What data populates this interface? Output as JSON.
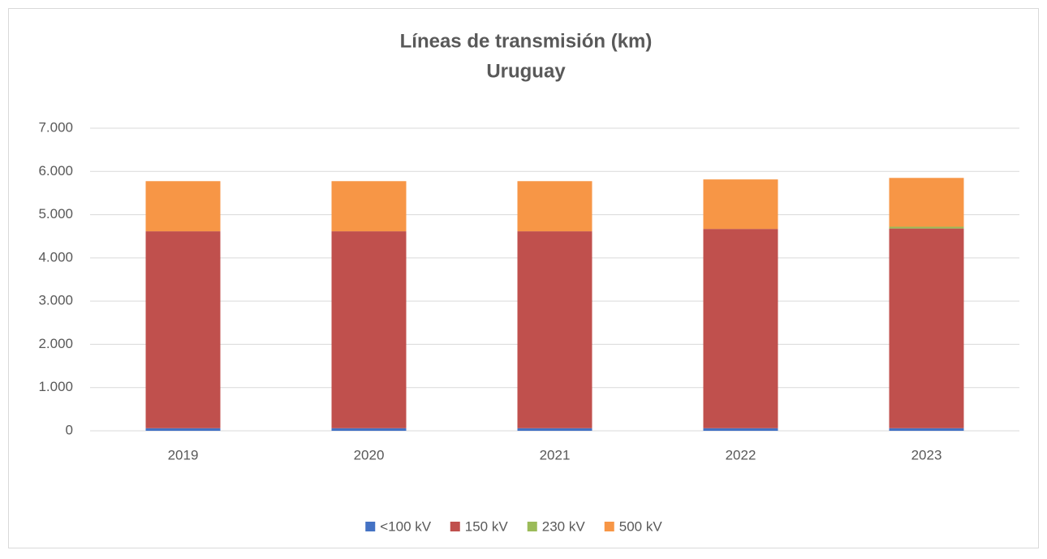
{
  "chart_data": {
    "type": "stacked_bar",
    "title": "Líneas de transmisión (km)",
    "subtitle": "Uruguay",
    "categories": [
      "2019",
      "2020",
      "2021",
      "2022",
      "2023"
    ],
    "series": [
      {
        "name": "<100 kV",
        "color": "#4472c4",
        "values": [
          60,
          60,
          60,
          60,
          60
        ]
      },
      {
        "name": "150 kV",
        "color": "#c0504d",
        "values": [
          4555,
          4555,
          4555,
          4610,
          4620
        ]
      },
      {
        "name": "230 kV",
        "color": "#9bbb59",
        "values": [
          0,
          0,
          0,
          0,
          40
        ]
      },
      {
        "name": "500 kV",
        "color": "#f79646",
        "values": [
          1160,
          1160,
          1160,
          1145,
          1130
        ]
      }
    ],
    "ylim": [
      0,
      7000
    ],
    "yticks": [
      0,
      {
        "value": 1000,
        "label": "1.000"
      },
      {
        "value": 2000,
        "label": "2.000"
      },
      {
        "value": 3000,
        "label": "3.000"
      },
      {
        "value": 4000,
        "label": "4.000"
      },
      {
        "value": 5000,
        "label": "5.000"
      },
      {
        "value": 6000,
        "label": "6.000"
      },
      {
        "value": 7000,
        "label": "7.000"
      }
    ],
    "grid": true,
    "legend": "bottom"
  }
}
